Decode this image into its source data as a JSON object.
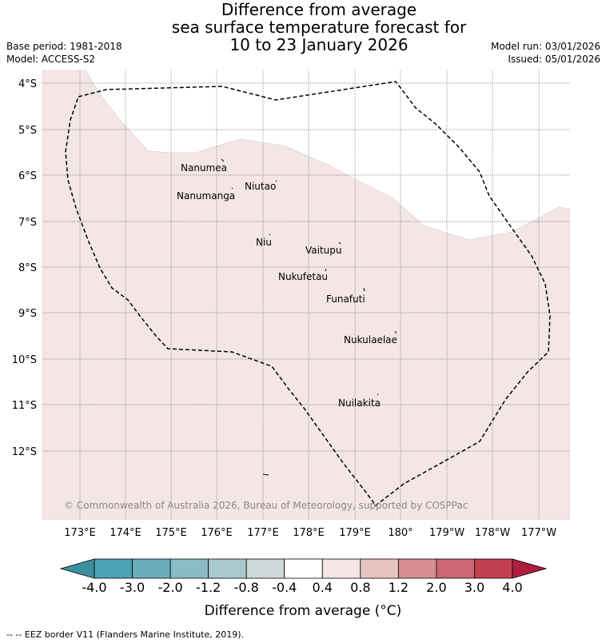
{
  "header": {
    "title_lines": [
      "Difference from average",
      "sea surface temperature forecast for",
      "10 to 23 January 2026"
    ],
    "base_period": "Base period: 1981-2018",
    "model": "Model: ACCESS-S2",
    "model_run": "Model run: 03/01/2026",
    "issued": "Issued: 05/01/2026"
  },
  "map": {
    "lat_labels": [
      "4°S",
      "5°S",
      "6°S",
      "7°S",
      "8°S",
      "9°S",
      "10°S",
      "11°S",
      "12°S"
    ],
    "lon_labels": [
      "173°E",
      "174°E",
      "175°E",
      "176°E",
      "177°E",
      "178°E",
      "179°E",
      "180°",
      "179°W",
      "178°W",
      "177°W"
    ],
    "islands": [
      "Nanumea",
      "Niutao",
      "Nanumanga",
      "Niu",
      "Vaitupu",
      "Nukufetau",
      "Funafuti",
      "Nukulaelae",
      "Nuilakita"
    ],
    "copyright": "© Commonwealth of Australia 2026, Bureau of Meteorology, supported by COSPPac",
    "anomaly_fill_color": "#f3e6e5",
    "land_free_color": "#ffffff"
  },
  "colorbar": {
    "tick_labels": [
      "-4.0",
      "-3.0",
      "-2.0",
      "-1.2",
      "-0.8",
      "-0.4",
      "0.4",
      "0.8",
      "1.2",
      "2.0",
      "3.0",
      "4.0"
    ],
    "colors": [
      "#3b8f9e",
      "#4aa2b3",
      "#6aaebb",
      "#8bbcc6",
      "#a9c9ce",
      "#cfd9da",
      "#ffffff",
      "#f3e6e5",
      "#e8c4c1",
      "#d88d93",
      "#cc6672",
      "#c1404f",
      "#b01e3e"
    ],
    "label": "Difference from average (°C)"
  },
  "footer": {
    "legend_text": "-- -- EEZ border V11 (Flanders Marine Institute, 2019)."
  }
}
